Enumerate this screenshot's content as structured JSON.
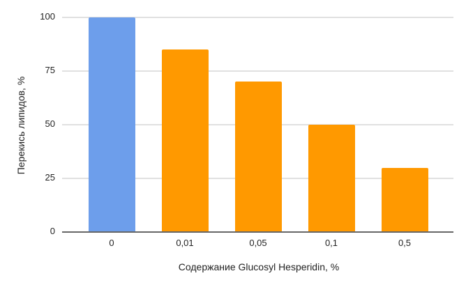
{
  "chart_data": {
    "type": "bar",
    "title": "",
    "xlabel": "Содержание Glucosyl Hesperidin, %",
    "ylabel": "Перекись липидов, %",
    "categories": [
      "0",
      "0,01",
      "0,05",
      "0,1",
      "0,5"
    ],
    "values": [
      100,
      85,
      70,
      50,
      30
    ],
    "bar_colors": [
      "#6d9eeb",
      "#ff9900",
      "#ff9900",
      "#ff9900",
      "#ff9900"
    ],
    "ylim": [
      0,
      100
    ],
    "yticks": [
      "0",
      "25",
      "50",
      "75",
      "100"
    ],
    "grid": true,
    "legend": null
  }
}
